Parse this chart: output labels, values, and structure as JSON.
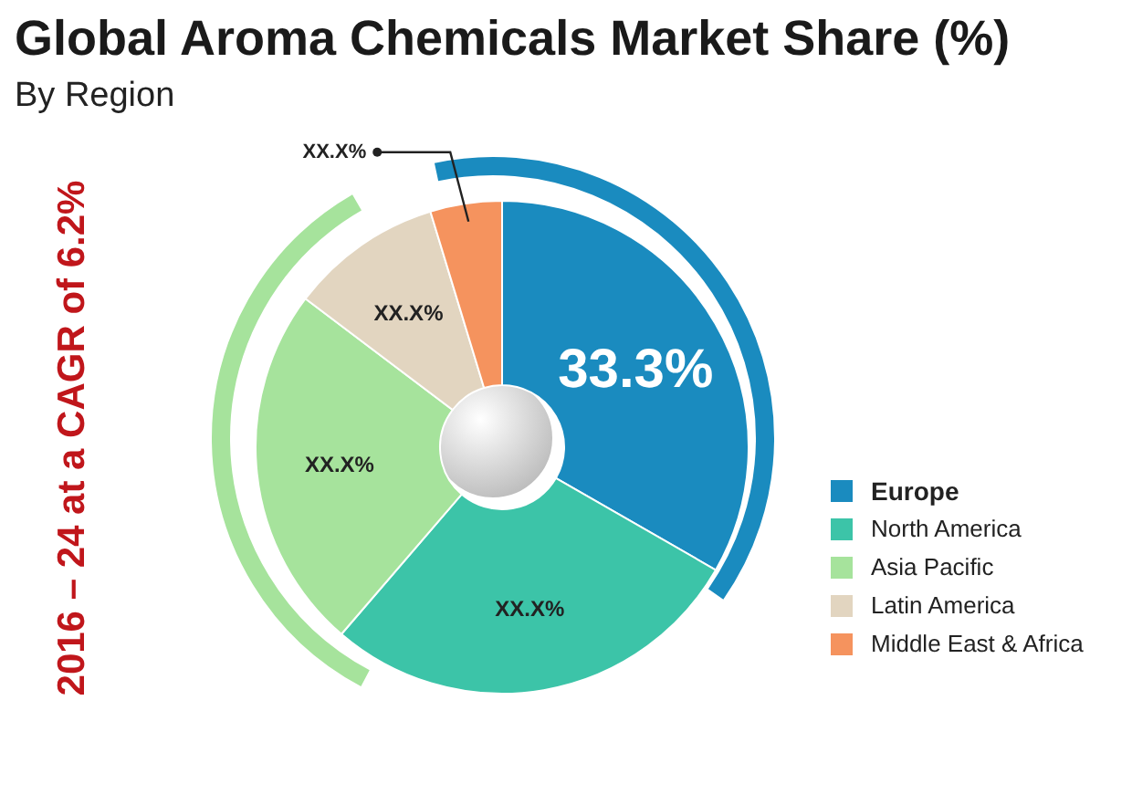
{
  "chart_data": {
    "type": "donut",
    "title": "Global Aroma Chemicals Market Share (%)",
    "subtitle": "By Region",
    "categories": [
      "Europe",
      "North America",
      "Asia Pacific",
      "Latin America",
      "Middle East & Africa"
    ],
    "values": [
      33.3,
      28,
      24,
      10,
      4.7
    ],
    "colors": [
      "#1a8bbf",
      "#3cc4a8",
      "#a6e39c",
      "#e2d5c0",
      "#f5935e"
    ],
    "value_labels": [
      "33.3%",
      "XX.X%",
      "XX.X%",
      "XX.X%",
      "XX.X%"
    ],
    "annotations": [
      "2016 – 24 at a CAGR of 6.2%"
    ],
    "legend": "right"
  }
}
